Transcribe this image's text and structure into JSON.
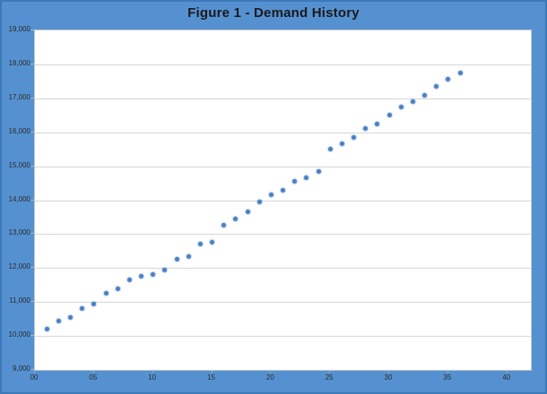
{
  "colors": {
    "chart_background": "#5591d1",
    "chart_border": "#3c79b8",
    "plot_background": "#ffffff",
    "plot_border": "#c9c9c9",
    "gridline": "#d7d7d7",
    "marker": "#4a80c4",
    "title_text": "#1a1a1a",
    "axis_text": "#2b2b2b"
  },
  "chart_data": {
    "type": "scatter",
    "title": "Figure 1 - Demand History",
    "xlabel": "",
    "ylabel": "",
    "xlim": [
      0,
      42
    ],
    "ylim": [
      9000,
      19000
    ],
    "grid": "horizontal",
    "legend": "none",
    "x_ticks": [
      0,
      5,
      10,
      15,
      20,
      25,
      30,
      35,
      40
    ],
    "x_tick_labels": [
      "00",
      "05",
      "10",
      "15",
      "20",
      "25",
      "30",
      "35",
      "40"
    ],
    "y_ticks": [
      9000,
      10000,
      11000,
      12000,
      13000,
      14000,
      15000,
      16000,
      17000,
      18000,
      19000
    ],
    "y_tick_labels": [
      "9,000",
      "10,000",
      "11,000",
      "12,000",
      "13,000",
      "14,000",
      "15,000",
      "16,000",
      "17,000",
      "18,000",
      "19,000"
    ],
    "series": [
      {
        "name": "Demand",
        "x": [
          1,
          2,
          3,
          4,
          5,
          6,
          7,
          8,
          9,
          10,
          11,
          12,
          13,
          14,
          15,
          16,
          17,
          18,
          19,
          20,
          21,
          22,
          23,
          24,
          25,
          26,
          27,
          28,
          29,
          30,
          31,
          32,
          33,
          34,
          35,
          36
        ],
        "y": [
          10200,
          10450,
          10550,
          10800,
          10950,
          11250,
          11400,
          11650,
          11750,
          11800,
          11950,
          12250,
          12350,
          12700,
          12750,
          13250,
          13450,
          13650,
          13950,
          14150,
          14300,
          14550,
          14650,
          14850,
          15500,
          15650,
          15850,
          16100,
          16250,
          16500,
          16750,
          16900,
          17100,
          17350,
          17550,
          17750
        ]
      }
    ]
  }
}
